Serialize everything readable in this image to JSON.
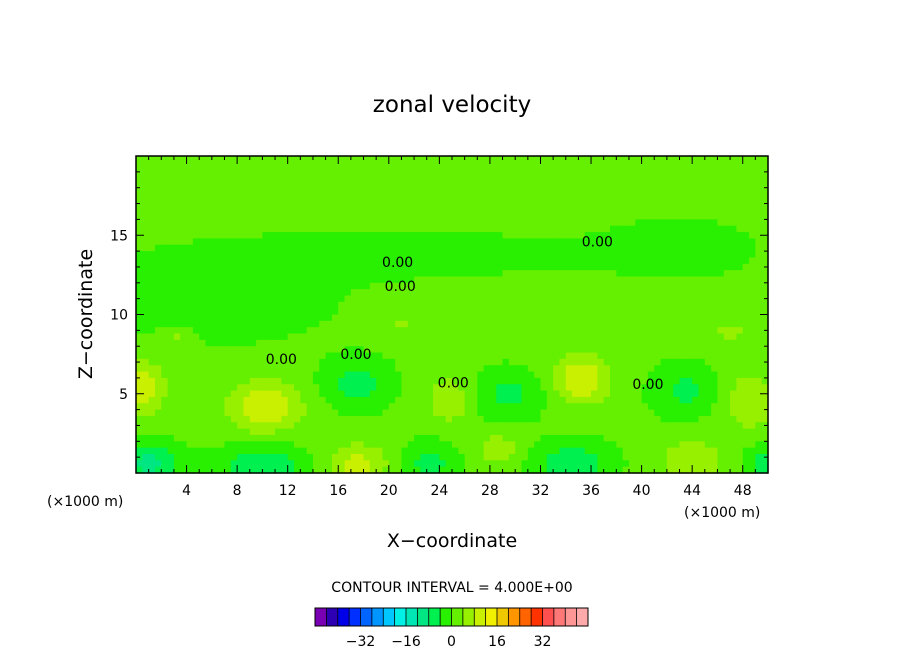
{
  "chart_data": {
    "type": "heatmap",
    "title": "zonal velocity",
    "xlabel": "X−coordinate",
    "ylabel": "Z−coordinate",
    "x_unit_left": "(×1000 m)",
    "x_unit_right": "(×1000 m)",
    "xlim": [
      0,
      50
    ],
    "ylim": [
      0,
      20
    ],
    "xticks": [
      "4",
      "8",
      "12",
      "16",
      "20",
      "24",
      "28",
      "32",
      "36",
      "40",
      "44",
      "48"
    ],
    "xtick_values": [
      4,
      8,
      12,
      16,
      20,
      24,
      28,
      32,
      36,
      40,
      44,
      48
    ],
    "yticks": [
      "5",
      "10",
      "15"
    ],
    "ytick_values": [
      5,
      10,
      15
    ],
    "contour_interval_text": "CONTOUR INTERVAL = 4.000E+00",
    "contour_labels": [
      {
        "text": "0.00",
        "x": 20.7,
        "y": 13.3
      },
      {
        "text": "0.00",
        "x": 20.9,
        "y": 11.8
      },
      {
        "text": "0.00",
        "x": 36.5,
        "y": 14.6
      },
      {
        "text": "0.00",
        "x": 11.5,
        "y": 7.2
      },
      {
        "text": "0.00",
        "x": 17.4,
        "y": 7.5
      },
      {
        "text": "0.00",
        "x": 25.1,
        "y": 5.7
      },
      {
        "text": "0.00",
        "x": 40.5,
        "y": 5.6
      }
    ],
    "anomalies": [
      {
        "x": 0.6,
        "z": 5.4,
        "sx": 1.6,
        "sz": 1.6,
        "a": 10
      },
      {
        "x": 10.2,
        "z": 4.2,
        "sx": 2.8,
        "sz": 1.6,
        "a": 11
      },
      {
        "x": 1.0,
        "z": 0.6,
        "sx": 2.5,
        "sz": 1.3,
        "a": -10
      },
      {
        "x": 10.0,
        "z": 0.3,
        "sx": 3.4,
        "sz": 1.4,
        "a": -9
      },
      {
        "x": 17.5,
        "z": 0.5,
        "sx": 2.3,
        "sz": 1.3,
        "a": 9
      },
      {
        "x": 17.5,
        "z": 5.6,
        "sx": 2.6,
        "sz": 1.5,
        "a": -7
      },
      {
        "x": 23.2,
        "z": 0.6,
        "sx": 2.0,
        "sz": 1.3,
        "a": -7
      },
      {
        "x": 24.8,
        "z": 4.6,
        "sx": 1.7,
        "sz": 1.4,
        "a": 7
      },
      {
        "x": 29.5,
        "z": 5.0,
        "sx": 2.8,
        "sz": 1.5,
        "a": -6
      },
      {
        "x": 28.7,
        "z": 1.5,
        "sx": 1.6,
        "sz": 1.0,
        "a": 6
      },
      {
        "x": 34.5,
        "z": 0.6,
        "sx": 3.0,
        "sz": 1.4,
        "a": -8
      },
      {
        "x": 35.2,
        "z": 5.9,
        "sx": 2.2,
        "sz": 1.5,
        "a": 11
      },
      {
        "x": 43.3,
        "z": 5.2,
        "sx": 2.4,
        "sz": 1.6,
        "a": -6
      },
      {
        "x": 44.0,
        "z": 0.8,
        "sx": 2.4,
        "sz": 1.3,
        "a": 7
      },
      {
        "x": 48.6,
        "z": 4.5,
        "sx": 2.0,
        "sz": 2.0,
        "a": 6
      },
      {
        "x": 49.6,
        "z": 0.5,
        "sx": 1.5,
        "sz": 1.2,
        "a": -7
      },
      {
        "x": 3.2,
        "z": 8.5,
        "sx": 1.2,
        "sz": 0.6,
        "a": 5
      },
      {
        "x": 21.0,
        "z": 9.3,
        "sx": 0.8,
        "sz": 0.5,
        "a": 5
      },
      {
        "x": 47.0,
        "z": 8.9,
        "sx": 1.2,
        "sz": 0.6,
        "a": 5
      },
      {
        "x": 6.0,
        "z": 11.0,
        "sx": 10.0,
        "sz": 3.0,
        "a": -2.8
      },
      {
        "x": 43.0,
        "z": 14.2,
        "sx": 6.0,
        "sz": 1.8,
        "a": -2.8
      },
      {
        "x": 22.0,
        "z": 13.8,
        "sx": 14.0,
        "sz": 1.6,
        "a": -2.2
      }
    ],
    "colorbar": {
      "ticks": [
        "−32",
        "−16",
        "0",
        "16",
        "32"
      ],
      "tick_values": [
        -32,
        -16,
        0,
        16,
        32
      ],
      "levels": [
        -44,
        -40,
        -36,
        -32,
        -28,
        -24,
        -20,
        -16,
        -12,
        -8,
        -4,
        0,
        4,
        8,
        12,
        16,
        20,
        24,
        28,
        32,
        36,
        40,
        44
      ],
      "colors": [
        "#7a00b4",
        "#2d00b4",
        "#0000e8",
        "#0030ff",
        "#0064ff",
        "#0096ff",
        "#00c8ff",
        "#00f0e6",
        "#00e6b4",
        "#00e682",
        "#00f050",
        "#28f000",
        "#64f000",
        "#96f000",
        "#c8f000",
        "#f0f000",
        "#f0c800",
        "#ff9600",
        "#ff6400",
        "#ff3200",
        "#ff5050",
        "#ff7878",
        "#ff9696",
        "#ffaaaa"
      ]
    }
  }
}
